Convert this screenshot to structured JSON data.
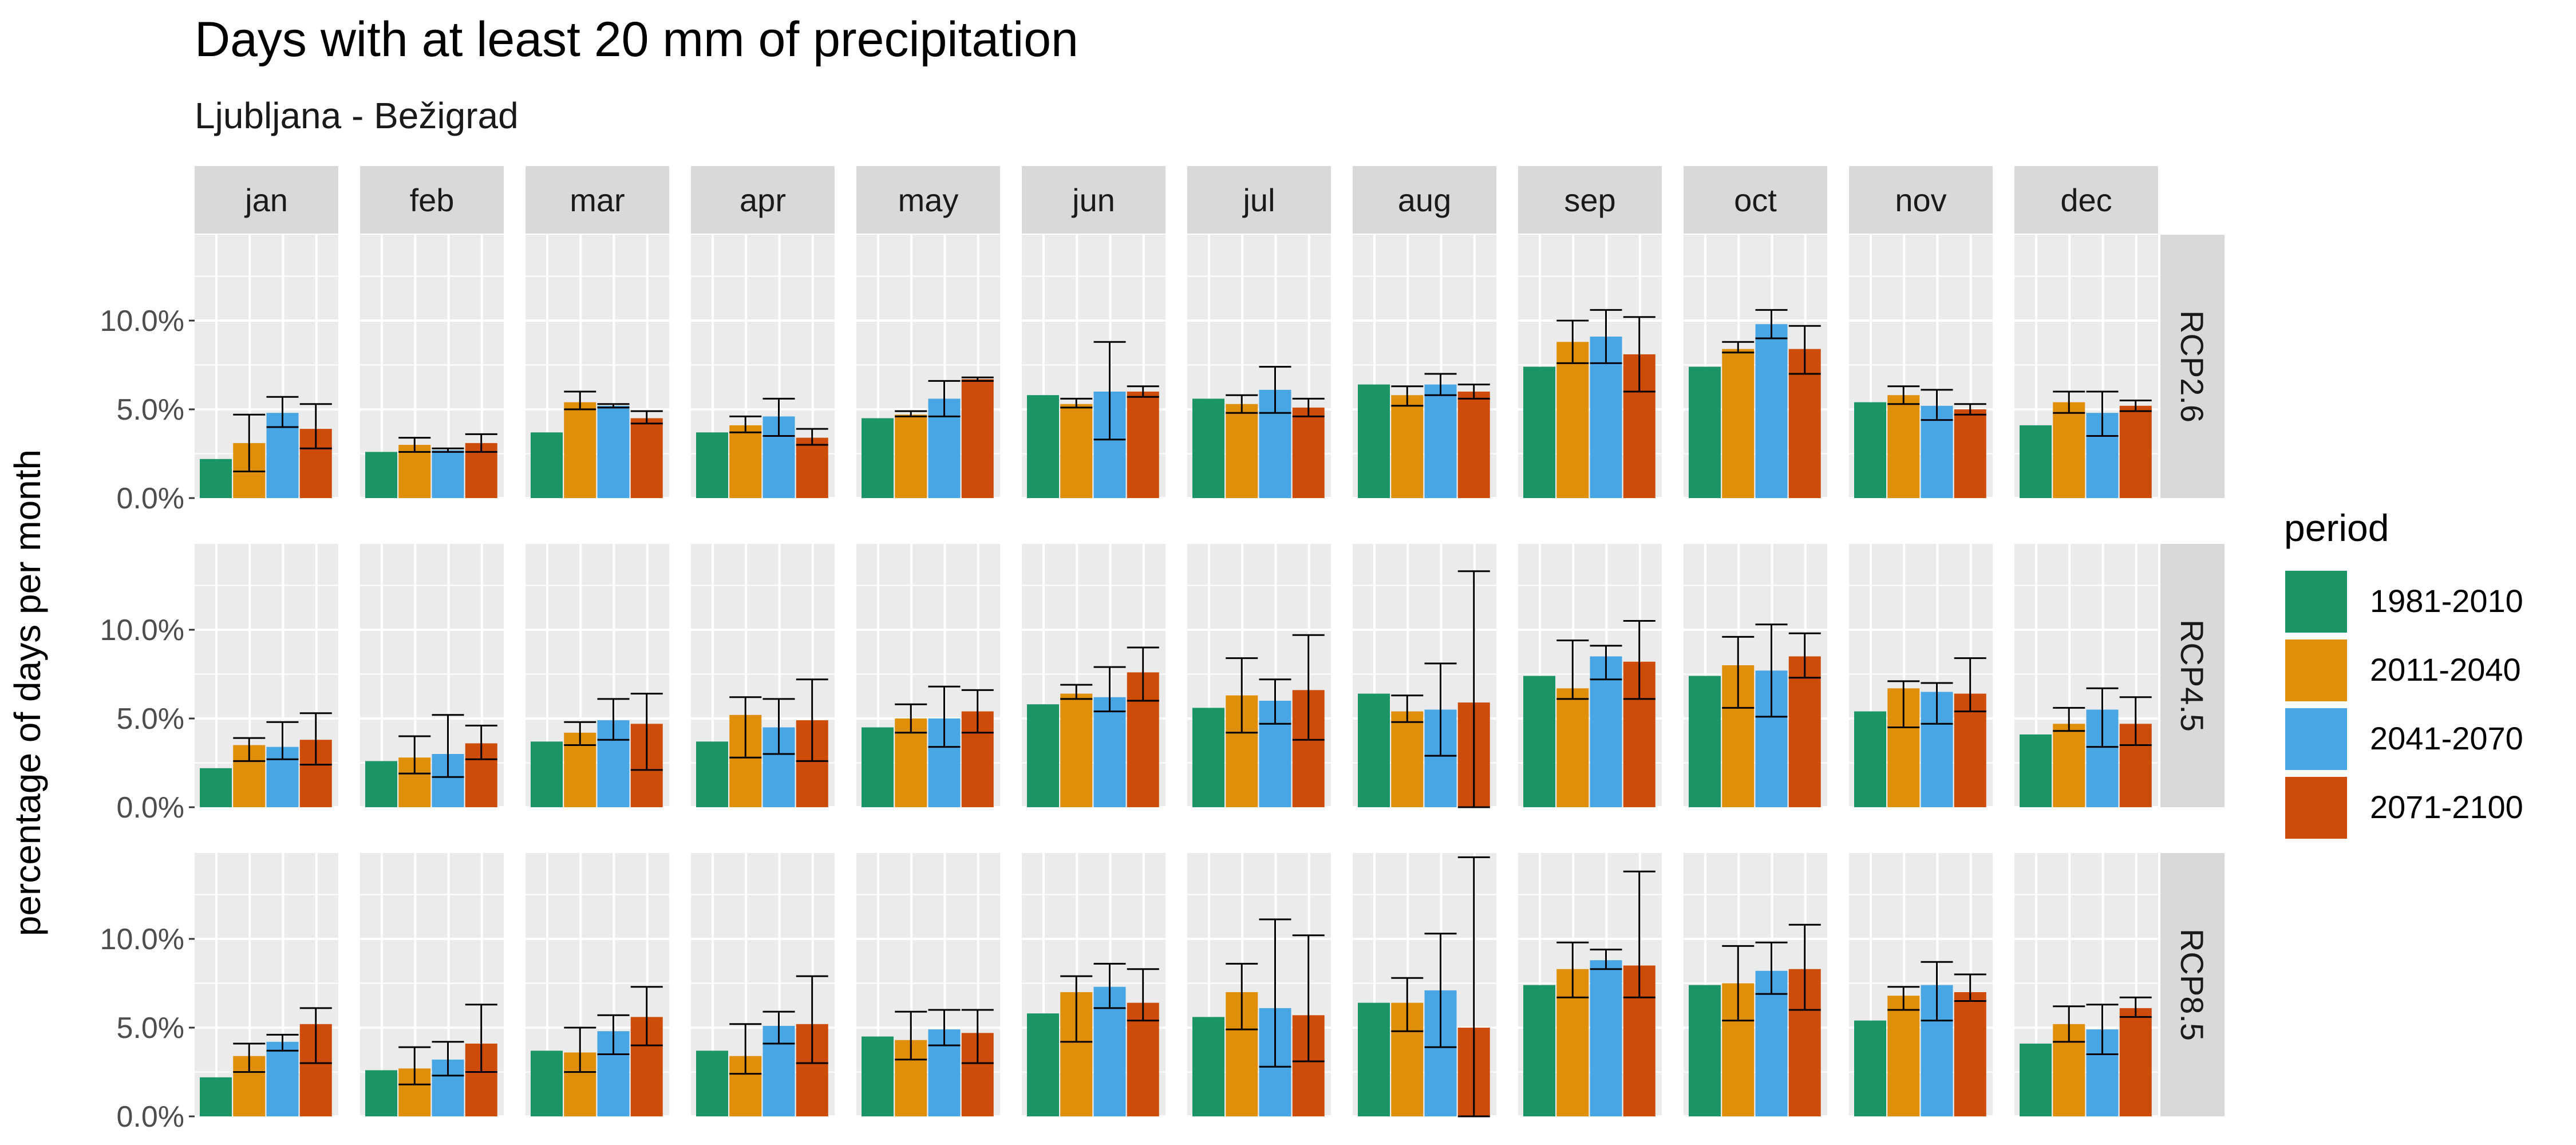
{
  "chart_data": {
    "type": "bar",
    "title": "Days with at least 20 mm of precipitation",
    "subtitle": "Ljubljana - Bežigrad",
    "ylabel": "percentage of days per month",
    "xlabel": "",
    "ylim": [
      0,
      14
    ],
    "yticks": [
      0,
      5,
      10
    ],
    "ytick_labels": [
      "0.0%",
      "5.0%",
      "10.0%"
    ],
    "months": [
      "jan",
      "feb",
      "mar",
      "apr",
      "may",
      "jun",
      "jul",
      "aug",
      "sep",
      "oct",
      "nov",
      "dec"
    ],
    "scenarios": [
      "RCP2.6",
      "RCP4.5",
      "RCP8.5"
    ],
    "legend": {
      "title": "period",
      "position": "right",
      "items": [
        {
          "label": "1981-2010",
          "color": "#1b9466"
        },
        {
          "label": "2011-2040",
          "color": "#e08f0b"
        },
        {
          "label": "2041-2070",
          "color": "#49a6e4"
        },
        {
          "label": "2071-2100",
          "color": "#cd4c0a"
        }
      ]
    },
    "panels": {
      "RCP2.6": {
        "jan": [
          [
            2.2,
            null,
            null
          ],
          [
            3.1,
            1.5,
            4.7
          ],
          [
            4.8,
            4.0,
            5.7
          ],
          [
            3.9,
            2.8,
            5.3
          ]
        ],
        "feb": [
          [
            2.6,
            null,
            null
          ],
          [
            3.0,
            2.6,
            3.4
          ],
          [
            2.7,
            2.6,
            2.8
          ],
          [
            3.1,
            2.6,
            3.6
          ]
        ],
        "mar": [
          [
            3.7,
            null,
            null
          ],
          [
            5.4,
            5.0,
            6.0
          ],
          [
            5.2,
            5.1,
            5.3
          ],
          [
            4.5,
            4.2,
            4.9
          ]
        ],
        "apr": [
          [
            3.7,
            null,
            null
          ],
          [
            4.1,
            3.7,
            4.6
          ],
          [
            4.6,
            3.5,
            5.6
          ],
          [
            3.4,
            3.0,
            3.9
          ]
        ],
        "may": [
          [
            4.5,
            null,
            null
          ],
          [
            4.7,
            4.6,
            4.9
          ],
          [
            5.6,
            4.6,
            6.6
          ],
          [
            6.7,
            6.6,
            6.8
          ]
        ],
        "jun": [
          [
            5.8,
            null,
            null
          ],
          [
            5.3,
            5.1,
            5.6
          ],
          [
            6.0,
            3.3,
            8.8
          ],
          [
            6.0,
            5.7,
            6.3
          ]
        ],
        "jul": [
          [
            5.6,
            null,
            null
          ],
          [
            5.3,
            4.8,
            5.8
          ],
          [
            6.1,
            4.8,
            7.4
          ],
          [
            5.1,
            4.6,
            5.6
          ]
        ],
        "aug": [
          [
            6.4,
            null,
            null
          ],
          [
            5.8,
            5.2,
            6.3
          ],
          [
            6.4,
            5.8,
            7.0
          ],
          [
            6.0,
            5.6,
            6.4
          ]
        ],
        "sep": [
          [
            7.4,
            null,
            null
          ],
          [
            8.8,
            7.6,
            10.0
          ],
          [
            9.1,
            7.6,
            10.6
          ],
          [
            8.1,
            6.0,
            10.2
          ]
        ],
        "oct": [
          [
            7.4,
            null,
            null
          ],
          [
            8.4,
            8.2,
            8.8
          ],
          [
            9.8,
            9.0,
            10.6
          ],
          [
            8.4,
            7.0,
            9.7
          ]
        ],
        "nov": [
          [
            5.4,
            null,
            null
          ],
          [
            5.8,
            5.3,
            6.3
          ],
          [
            5.2,
            4.4,
            6.1
          ],
          [
            5.0,
            4.7,
            5.3
          ]
        ],
        "dec": [
          [
            4.1,
            null,
            null
          ],
          [
            5.4,
            4.8,
            6.0
          ],
          [
            4.8,
            3.5,
            6.0
          ],
          [
            5.2,
            4.9,
            5.5
          ]
        ]
      },
      "RCP4.5": {
        "jan": [
          [
            2.2,
            null,
            null
          ],
          [
            3.5,
            2.6,
            3.9
          ],
          [
            3.4,
            2.7,
            4.8
          ],
          [
            3.8,
            2.4,
            5.3
          ]
        ],
        "feb": [
          [
            2.6,
            null,
            null
          ],
          [
            2.8,
            1.9,
            4.0
          ],
          [
            3.0,
            1.7,
            5.2
          ],
          [
            3.6,
            2.7,
            4.6
          ]
        ],
        "mar": [
          [
            3.7,
            null,
            null
          ],
          [
            4.2,
            3.5,
            4.8
          ],
          [
            4.9,
            3.8,
            6.1
          ],
          [
            4.7,
            2.1,
            6.4
          ]
        ],
        "apr": [
          [
            3.7,
            null,
            null
          ],
          [
            5.2,
            2.8,
            6.2
          ],
          [
            4.5,
            3.0,
            6.1
          ],
          [
            4.9,
            2.6,
            7.2
          ]
        ],
        "may": [
          [
            4.5,
            null,
            null
          ],
          [
            5.0,
            4.2,
            5.8
          ],
          [
            5.0,
            3.4,
            6.8
          ],
          [
            5.4,
            4.2,
            6.6
          ]
        ],
        "jun": [
          [
            5.8,
            null,
            null
          ],
          [
            6.4,
            6.1,
            6.9
          ],
          [
            6.2,
            5.4,
            7.9
          ],
          [
            7.6,
            6.0,
            9.0
          ]
        ],
        "jul": [
          [
            5.6,
            null,
            null
          ],
          [
            6.3,
            4.2,
            8.4
          ],
          [
            6.0,
            4.7,
            7.2
          ],
          [
            6.6,
            3.8,
            9.7
          ]
        ],
        "aug": [
          [
            6.4,
            null,
            null
          ],
          [
            5.4,
            4.8,
            6.3
          ],
          [
            5.5,
            2.9,
            8.1
          ],
          [
            5.9,
            0.0,
            13.3
          ]
        ],
        "sep": [
          [
            7.4,
            null,
            null
          ],
          [
            6.7,
            6.1,
            9.4
          ],
          [
            8.5,
            7.2,
            9.1
          ],
          [
            8.2,
            6.1,
            10.5
          ]
        ],
        "oct": [
          [
            7.4,
            null,
            null
          ],
          [
            8.0,
            5.6,
            9.6
          ],
          [
            7.7,
            5.1,
            10.3
          ],
          [
            8.5,
            7.3,
            9.8
          ]
        ],
        "nov": [
          [
            5.4,
            null,
            null
          ],
          [
            6.7,
            4.5,
            7.1
          ],
          [
            6.5,
            4.7,
            7.0
          ],
          [
            6.4,
            5.4,
            8.4
          ]
        ],
        "dec": [
          [
            4.1,
            null,
            null
          ],
          [
            4.7,
            4.3,
            5.6
          ],
          [
            5.5,
            3.4,
            6.7
          ],
          [
            4.7,
            3.5,
            6.2
          ]
        ]
      },
      "RCP8.5": {
        "jan": [
          [
            2.2,
            null,
            null
          ],
          [
            3.4,
            2.5,
            4.1
          ],
          [
            4.2,
            3.7,
            4.6
          ],
          [
            5.2,
            3.0,
            6.1
          ]
        ],
        "feb": [
          [
            2.6,
            null,
            null
          ],
          [
            2.7,
            1.8,
            3.9
          ],
          [
            3.2,
            2.3,
            4.2
          ],
          [
            4.1,
            2.5,
            6.3
          ]
        ],
        "mar": [
          [
            3.7,
            null,
            null
          ],
          [
            3.6,
            2.5,
            5.0
          ],
          [
            4.8,
            3.5,
            5.7
          ],
          [
            5.6,
            4.0,
            7.3
          ]
        ],
        "apr": [
          [
            3.7,
            null,
            null
          ],
          [
            3.4,
            2.4,
            5.2
          ],
          [
            5.1,
            4.1,
            5.9
          ],
          [
            5.2,
            3.0,
            7.9
          ]
        ],
        "may": [
          [
            4.5,
            null,
            null
          ],
          [
            4.3,
            3.2,
            5.9
          ],
          [
            4.9,
            4.0,
            6.0
          ],
          [
            4.7,
            3.0,
            6.0
          ]
        ],
        "jun": [
          [
            5.8,
            null,
            null
          ],
          [
            7.0,
            4.2,
            7.9
          ],
          [
            7.3,
            6.1,
            8.6
          ],
          [
            6.4,
            5.4,
            8.3
          ]
        ],
        "jul": [
          [
            5.6,
            null,
            null
          ],
          [
            7.0,
            4.9,
            8.6
          ],
          [
            6.1,
            2.8,
            11.1
          ],
          [
            5.7,
            3.1,
            10.2
          ]
        ],
        "aug": [
          [
            6.4,
            null,
            null
          ],
          [
            6.4,
            4.8,
            7.8
          ],
          [
            7.1,
            3.9,
            10.3
          ],
          [
            5.0,
            0.0,
            14.6
          ]
        ],
        "sep": [
          [
            7.4,
            null,
            null
          ],
          [
            8.3,
            6.7,
            9.8
          ],
          [
            8.8,
            8.3,
            9.4
          ],
          [
            8.5,
            6.7,
            13.8
          ]
        ],
        "oct": [
          [
            7.4,
            null,
            null
          ],
          [
            7.5,
            5.4,
            9.6
          ],
          [
            8.2,
            6.9,
            9.8
          ],
          [
            8.3,
            6.0,
            10.8
          ]
        ],
        "nov": [
          [
            5.4,
            null,
            null
          ],
          [
            6.8,
            6.0,
            7.3
          ],
          [
            7.4,
            5.4,
            8.7
          ],
          [
            7.0,
            6.5,
            8.0
          ]
        ],
        "dec": [
          [
            4.1,
            null,
            null
          ],
          [
            5.2,
            4.2,
            6.2
          ],
          [
            4.9,
            3.5,
            6.3
          ],
          [
            6.1,
            5.6,
            6.7
          ]
        ]
      }
    }
  }
}
